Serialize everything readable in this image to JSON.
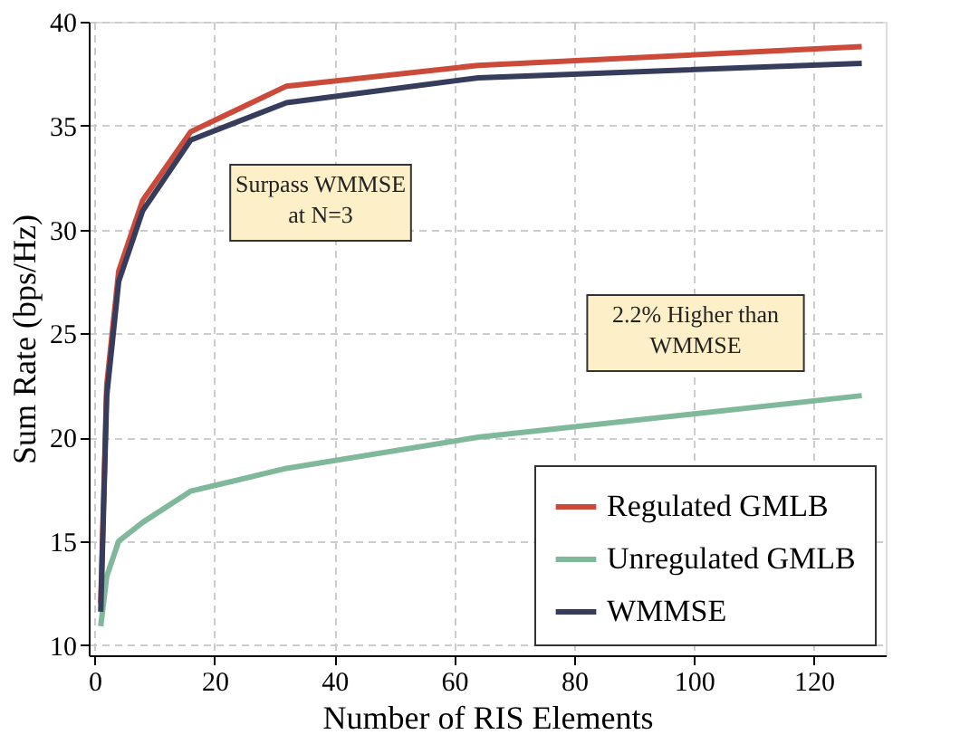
{
  "chart_data": {
    "type": "line",
    "xlabel": "Number of RIS Elements",
    "ylabel": "Sum Rate (bps/Hz)",
    "xlim": [
      -1,
      132
    ],
    "xticks": [
      0,
      20,
      40,
      60,
      80,
      100,
      120
    ],
    "ylim": [
      9.5,
      40
    ],
    "yticks": [
      10,
      15,
      20,
      25,
      30,
      35,
      40
    ],
    "grid": true,
    "legend": "bottom right",
    "marker": "none",
    "line_style": "solid",
    "series": [
      {
        "name": "Regulated GMLB",
        "color": "#cc4a3a",
        "x": [
          1,
          2,
          4,
          8,
          16,
          32,
          64,
          128
        ],
        "values": [
          12.0,
          22.5,
          28.0,
          31.4,
          34.7,
          36.9,
          37.9,
          38.8
        ]
      },
      {
        "name": "Unregulated GMLB",
        "color": "#7fb89a",
        "x": [
          1,
          2,
          4,
          8,
          16,
          32,
          64,
          128
        ],
        "values": [
          10.9,
          13.3,
          15.0,
          15.9,
          17.4,
          18.5,
          20.0,
          22.0
        ]
      },
      {
        "name": "WMMSE",
        "color": "#363c5c",
        "x": [
          1,
          2,
          4,
          8,
          16,
          32,
          64,
          128
        ],
        "values": [
          11.6,
          22.0,
          27.5,
          30.9,
          34.3,
          36.1,
          37.3,
          38.0
        ]
      }
    ],
    "annotations": [
      "Surpass WMMSE\nat N=3",
      "2.2% Higher than\nWMMSE"
    ]
  }
}
